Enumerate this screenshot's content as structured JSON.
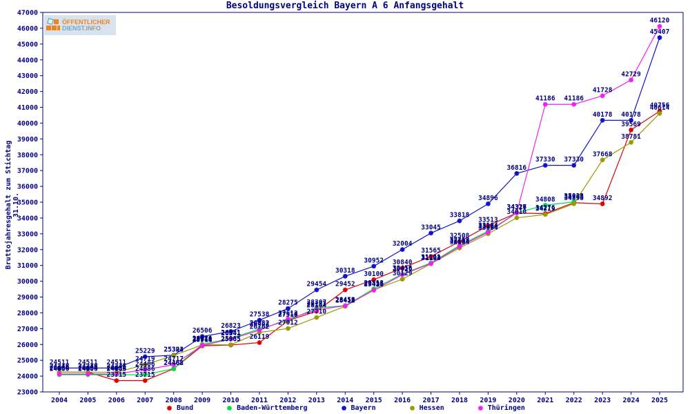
{
  "title": "Besoldungsvergleich Bayern A 6 Anfangsgehalt",
  "logo": {
    "line1": "ÖFFENTLICHER",
    "line2_part1": "DIENST.",
    "line2_part2": "INFO"
  },
  "y_axis_label": "Bruttojahresgehalt zum Stichtag 31.10.",
  "text_color": "#000080",
  "chart_data": {
    "type": "line",
    "title": "Besoldungsvergleich Bayern A 6 Anfangsgehalt",
    "xlabel": "",
    "ylabel": "Bruttojahresgehalt zum Stichtag 31.10.",
    "x": [
      2004,
      2005,
      2006,
      2007,
      2008,
      2009,
      2010,
      2011,
      2012,
      2013,
      2014,
      2015,
      2016,
      2017,
      2018,
      2019,
      2020,
      2021,
      2022,
      2023,
      2024,
      2025
    ],
    "ylim": [
      23000,
      47000
    ],
    "ytick_step": 1000,
    "grid": false,
    "legend_position": "bottom",
    "point_labels": true,
    "label_color": "#000080",
    "series": [
      {
        "name": "Bund",
        "color": "#dd0000",
        "values": [
          24248,
          24248,
          23715,
          23715,
          24462,
          25914,
          25965,
          26119,
          27510,
          28104,
          29452,
          30100,
          30840,
          31565,
          32508,
          33513,
          34316,
          34276,
          34968,
          34892,
          39569,
          40756
        ]
      },
      {
        "name": "Baden-Württemberg",
        "color": "#00dd44",
        "values": [
          24086,
          24086,
          24086,
          24086,
          24468,
          26014,
          26381,
          26982,
          27519,
          28307,
          28456,
          29518,
          30456,
          31161,
          32259,
          33164,
          34327,
          34808,
          35023,
          null,
          null,
          null
        ]
      },
      {
        "name": "Bayern",
        "color": "#1111cc",
        "values": [
          24511,
          24511,
          24511,
          25229,
          25323,
          26506,
          26823,
          27538,
          28275,
          29454,
          30318,
          30952,
          32004,
          33045,
          33818,
          34896,
          36816,
          37330,
          37330,
          40178,
          40178,
          45407
        ]
      },
      {
        "name": "Hessen",
        "color": "#999900",
        "values": [
          24246,
          24246,
          24246,
          24719,
          25304,
          25979,
          25985,
          26762,
          27012,
          27710,
          28412,
          29456,
          30129,
          31103,
          32104,
          33004,
          34010,
          34219,
          34898,
          37668,
          38781,
          40614
        ]
      },
      {
        "name": "Thüringen",
        "color": "#ee22ee",
        "values": [
          24134,
          24134,
          24134,
          24406,
          24717,
          25941,
          26341,
          26902,
          27612,
          28187,
          28452,
          29426,
          30416,
          31124,
          32194,
          33104,
          34327,
          41186,
          41186,
          41728,
          42729,
          46120
        ]
      }
    ]
  }
}
